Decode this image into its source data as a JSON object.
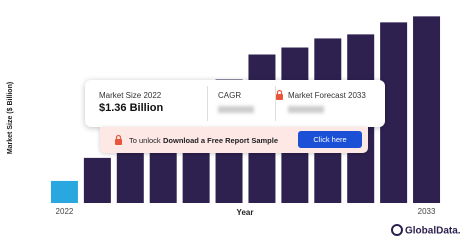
{
  "chart_data": {
    "type": "bar",
    "y_label": "Market Size ($ Billion)",
    "x_label": "Year",
    "categories": [
      "2022",
      null,
      null,
      null,
      null,
      null,
      null,
      null,
      null,
      null,
      null,
      "2033"
    ],
    "values": [
      1.36,
      2.78,
      3.89,
      5.13,
      6.37,
      7.61,
      9.15,
      9.58,
      10.14,
      10.39,
      11.13,
      11.5
    ],
    "colors": [
      "#29a8e0",
      "#2e2150",
      "#2e2150",
      "#2e2150",
      "#2e2150",
      "#2e2150",
      "#2e2150",
      "#2e2150",
      "#2e2150",
      "#2e2150",
      "#2e2150",
      "#2e2150"
    ],
    "ylim": [
      0,
      12.2
    ]
  },
  "overlay": {
    "size_label": "Market Size 2022",
    "size_value": "$1.36 Billion",
    "cagr_label": "CAGR",
    "forecast_label": "Market Forecast 2033",
    "unlock_prefix": "To unlock",
    "unlock_link": "Download a Free Report Sample",
    "button": "Click here"
  },
  "logo": "GlobalData."
}
